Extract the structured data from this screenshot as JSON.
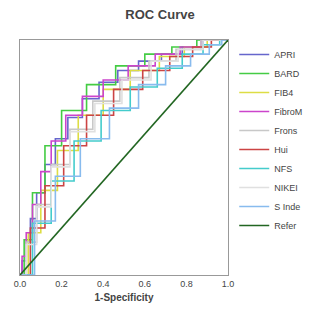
{
  "chart_data": {
    "type": "line",
    "title": "ROC Curve",
    "xlabel": "1-Specificity",
    "xlim": [
      0.0,
      1.0
    ],
    "ylim": [
      0.0,
      1.0
    ],
    "xticks": [
      {
        "value": 0.0,
        "label": "0.0"
      },
      0.2,
      0.4,
      0.6,
      0.8,
      {
        "value": 1.0,
        "label": "1.0"
      }
    ],
    "yticks": [],
    "tick_labels": "x",
    "grid": false,
    "legend": "right",
    "series": [
      {
        "name": "APRI",
        "color": "#6666cc",
        "x": [
          0.0,
          0.01,
          0.01,
          0.03,
          0.03,
          0.05,
          0.05,
          0.08,
          0.08,
          0.12,
          0.12,
          0.17,
          0.17,
          0.23,
          0.23,
          0.3,
          0.3,
          0.38,
          0.38,
          0.47,
          0.47,
          0.57,
          0.57,
          0.68,
          0.68,
          0.78,
          0.78,
          0.88,
          0.88,
          1.0
        ],
        "values": [
          0.0,
          0.0,
          0.06,
          0.06,
          0.14,
          0.14,
          0.24,
          0.24,
          0.35,
          0.35,
          0.47,
          0.47,
          0.58,
          0.58,
          0.67,
          0.67,
          0.75,
          0.75,
          0.82,
          0.82,
          0.87,
          0.87,
          0.91,
          0.91,
          0.94,
          0.94,
          0.97,
          0.97,
          1.0,
          1.0
        ]
      },
      {
        "name": "BARD",
        "color": "#44cc44",
        "x": [
          0.0,
          0.02,
          0.02,
          0.06,
          0.06,
          0.12,
          0.12,
          0.2,
          0.2,
          0.32,
          0.32,
          0.46,
          0.46,
          0.6,
          0.6,
          0.73,
          0.73,
          0.85,
          0.85,
          1.0
        ],
        "values": [
          0.0,
          0.0,
          0.15,
          0.15,
          0.35,
          0.35,
          0.55,
          0.55,
          0.7,
          0.7,
          0.81,
          0.81,
          0.89,
          0.89,
          0.94,
          0.94,
          0.97,
          0.97,
          1.0,
          1.0
        ]
      },
      {
        "name": "FIB4",
        "color": "#dddd44",
        "x": [
          0.0,
          0.04,
          0.04,
          0.1,
          0.1,
          0.18,
          0.18,
          0.28,
          0.28,
          0.4,
          0.4,
          0.53,
          0.53,
          0.67,
          0.67,
          0.79,
          0.79,
          0.9,
          0.9,
          1.0
        ],
        "values": [
          0.0,
          0.0,
          0.18,
          0.18,
          0.36,
          0.36,
          0.53,
          0.53,
          0.68,
          0.68,
          0.79,
          0.79,
          0.87,
          0.87,
          0.93,
          0.93,
          0.97,
          0.97,
          1.0,
          1.0
        ]
      },
      {
        "name": "FibroM",
        "color": "#cc44cc",
        "x": [
          0.0,
          0.01,
          0.01,
          0.03,
          0.03,
          0.06,
          0.06,
          0.1,
          0.1,
          0.15,
          0.15,
          0.22,
          0.22,
          0.3,
          0.3,
          0.4,
          0.4,
          0.52,
          0.52,
          0.65,
          0.65,
          0.77,
          0.77,
          0.87,
          0.87,
          1.0
        ],
        "values": [
          0.0,
          0.0,
          0.08,
          0.08,
          0.18,
          0.18,
          0.3,
          0.3,
          0.44,
          0.44,
          0.57,
          0.57,
          0.68,
          0.68,
          0.76,
          0.76,
          0.83,
          0.83,
          0.89,
          0.89,
          0.94,
          0.94,
          0.97,
          0.97,
          1.0,
          1.0
        ]
      },
      {
        "name": "Frons",
        "color": "#c8c8c8",
        "x": [
          0.0,
          0.03,
          0.03,
          0.08,
          0.08,
          0.15,
          0.15,
          0.24,
          0.24,
          0.35,
          0.35,
          0.48,
          0.48,
          0.62,
          0.62,
          0.75,
          0.75,
          0.87,
          0.87,
          1.0
        ],
        "values": [
          0.0,
          0.0,
          0.14,
          0.14,
          0.3,
          0.3,
          0.47,
          0.47,
          0.62,
          0.62,
          0.74,
          0.74,
          0.84,
          0.84,
          0.91,
          0.91,
          0.96,
          0.96,
          1.0,
          1.0
        ]
      },
      {
        "name": "Hui",
        "color": "#cc4444",
        "x": [
          0.0,
          0.05,
          0.05,
          0.12,
          0.12,
          0.21,
          0.21,
          0.32,
          0.32,
          0.45,
          0.45,
          0.59,
          0.59,
          0.72,
          0.72,
          0.83,
          0.83,
          0.92,
          0.92,
          1.0
        ],
        "values": [
          0.0,
          0.0,
          0.2,
          0.2,
          0.38,
          0.38,
          0.55,
          0.55,
          0.68,
          0.68,
          0.79,
          0.79,
          0.87,
          0.87,
          0.93,
          0.93,
          0.97,
          0.97,
          1.0,
          1.0
        ]
      },
      {
        "name": "NFS",
        "color": "#44cccc",
        "x": [
          0.0,
          0.06,
          0.06,
          0.15,
          0.15,
          0.26,
          0.26,
          0.39,
          0.39,
          0.53,
          0.53,
          0.66,
          0.66,
          0.78,
          0.78,
          0.88,
          0.88,
          0.96,
          0.96,
          1.0
        ],
        "values": [
          0.0,
          0.0,
          0.22,
          0.22,
          0.4,
          0.4,
          0.57,
          0.57,
          0.7,
          0.7,
          0.8,
          0.8,
          0.88,
          0.88,
          0.94,
          0.94,
          0.98,
          0.98,
          1.0,
          1.0
        ]
      },
      {
        "name": "NIKEI",
        "color": "#e0e0e0",
        "x": [
          0.0,
          0.03,
          0.03,
          0.08,
          0.08,
          0.15,
          0.15,
          0.24,
          0.24,
          0.36,
          0.36,
          0.49,
          0.49,
          0.63,
          0.63,
          0.76,
          0.76,
          0.88,
          0.88,
          1.0
        ],
        "values": [
          0.0,
          0.0,
          0.13,
          0.13,
          0.29,
          0.29,
          0.46,
          0.46,
          0.61,
          0.61,
          0.73,
          0.73,
          0.83,
          0.83,
          0.91,
          0.91,
          0.96,
          0.96,
          1.0,
          1.0
        ]
      },
      {
        "name": "S Inde",
        "color": "#88bbee",
        "x": [
          0.0,
          0.07,
          0.07,
          0.17,
          0.17,
          0.29,
          0.29,
          0.43,
          0.43,
          0.57,
          0.57,
          0.7,
          0.7,
          0.82,
          0.82,
          0.91,
          0.91,
          0.97,
          0.97,
          1.0
        ],
        "values": [
          0.0,
          0.0,
          0.23,
          0.23,
          0.42,
          0.42,
          0.58,
          0.58,
          0.71,
          0.71,
          0.81,
          0.81,
          0.89,
          0.89,
          0.94,
          0.94,
          0.98,
          0.98,
          1.0,
          1.0
        ]
      },
      {
        "name": "Refer",
        "color": "#226622",
        "x": [
          0.0,
          1.0
        ],
        "values": [
          0.0,
          1.0
        ]
      }
    ]
  }
}
